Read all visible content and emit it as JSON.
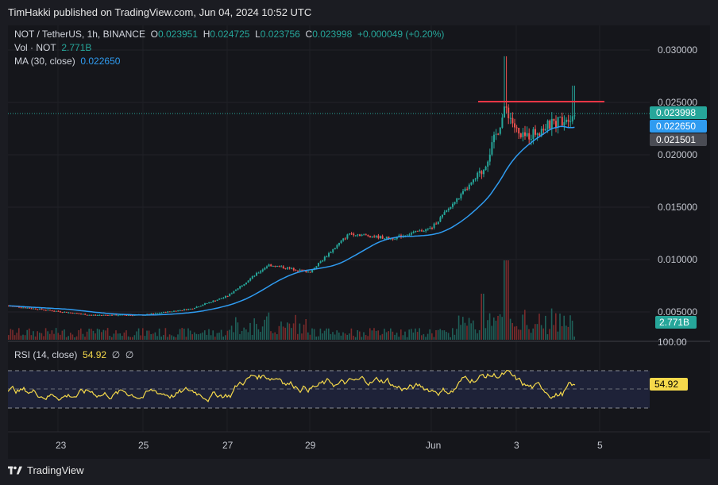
{
  "header": {
    "published": "TimHakki published on TradingView.com, Jun 04, 2024 10:52 UTC"
  },
  "legend": {
    "symbol": "NOT / TetherUS, 1h, BINANCE",
    "o_label": "O",
    "o_value": "0.023951",
    "h_label": "H",
    "h_value": "0.024725",
    "l_label": "L",
    "l_value": "0.023756",
    "c_label": "C",
    "c_value": "0.023998",
    "change": "+0.000049 (+0.20%)",
    "vol_label": "Vol · NOT",
    "vol_value": "2.771B",
    "ma_label": "MA (30, close)",
    "ma_value": "0.022650"
  },
  "rsi_legend": {
    "label": "RSI (14, close)",
    "value": "54.92",
    "extra1": "∅",
    "extra2": "∅"
  },
  "price_axis": {
    "ticks": [
      "0.030000",
      "0.025000",
      "0.020000",
      "0.015000",
      "0.010000",
      "0.005000"
    ],
    "partial_tick": "100.00",
    "tags": {
      "close": "0.023998",
      "ma": "0.022650",
      "low": "0.021501",
      "volume": "2.771B",
      "rsi": "54.92"
    }
  },
  "time_axis": {
    "ticks": [
      "23",
      "25",
      "27",
      "29",
      "Jun",
      "3",
      "5"
    ]
  },
  "footer": {
    "brand": "TradingView"
  },
  "colors": {
    "up": "#26a69a",
    "down": "#ef5350",
    "ma": "#2f9bf0",
    "rsi": "#f5d94b",
    "resistance": "#f23645",
    "background": "#15161b"
  },
  "chart_data": [
    {
      "type": "candlestick",
      "title": "NOT / TetherUS, 1h, BINANCE",
      "x_ticks": [
        "23",
        "25",
        "27",
        "29",
        "Jun",
        "3",
        "5"
      ],
      "ylim": [
        0.0037,
        0.0316
      ],
      "y_ticks": [
        0.005,
        0.01,
        0.015,
        0.02,
        0.025,
        0.03
      ],
      "close_approx_keypoints": [
        {
          "x": "May 22",
          "y": 0.0056
        },
        {
          "x": "May 24",
          "y": 0.0047
        },
        {
          "x": "May 25",
          "y": 0.0047
        },
        {
          "x": "May 26",
          "y": 0.0053
        },
        {
          "x": "May 27",
          "y": 0.0065
        },
        {
          "x": "May 28",
          "y": 0.0095
        },
        {
          "x": "May 29",
          "y": 0.0088
        },
        {
          "x": "May 30",
          "y": 0.0125
        },
        {
          "x": "May 31",
          "y": 0.012
        },
        {
          "x": "Jun 1",
          "y": 0.013
        },
        {
          "x": "Jun 2",
          "y": 0.0185
        },
        {
          "x": "Jun 2.7",
          "y": 0.0245
        },
        {
          "x": "Jun 3",
          "y": 0.0215
        },
        {
          "x": "Jun 4",
          "y": 0.024
        }
      ],
      "resistance_level": 0.025,
      "ma": {
        "name": "MA (30, close)",
        "last": 0.02265
      },
      "volume_last": "2.771B",
      "last_close": 0.023998
    },
    {
      "type": "line",
      "title": "RSI (14, close)",
      "bands": [
        70,
        50,
        30
      ],
      "last": 54.92
    }
  ]
}
